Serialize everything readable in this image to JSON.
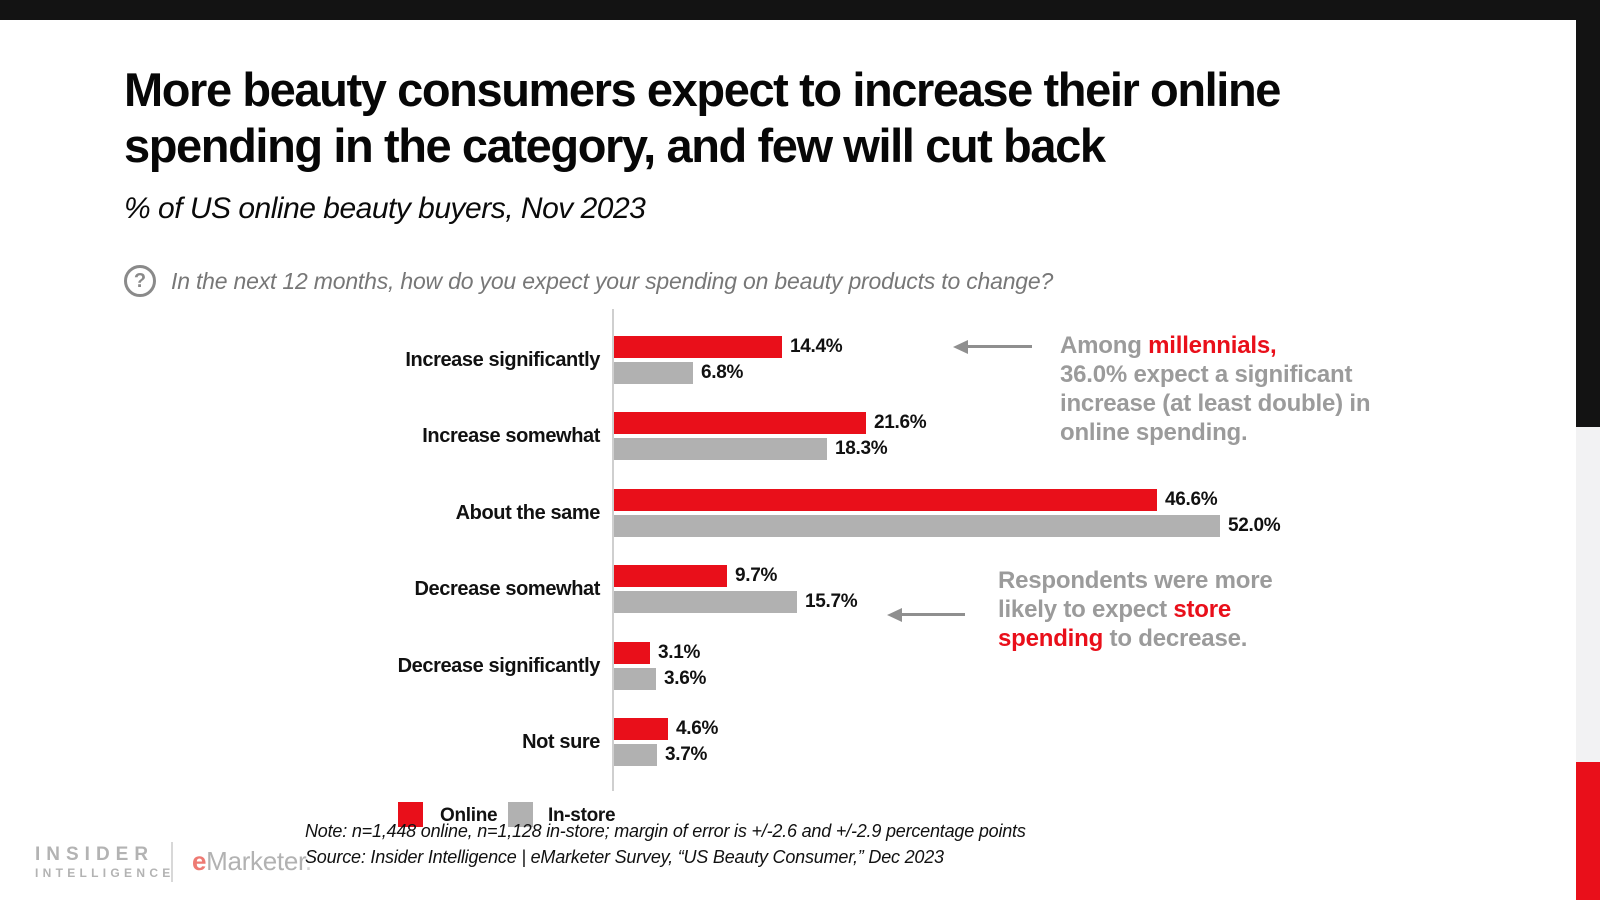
{
  "page": {
    "top_bar_color": "#131313",
    "side_strip_colors": {
      "black": "#131313",
      "gray": "#f2f2f3",
      "red": "#e90f1a"
    }
  },
  "header": {
    "title_line1": "More beauty consumers expect to increase their online",
    "title_line2": "spending in the category, and few will cut back",
    "subtitle": "% of US online beauty buyers, Nov 2023",
    "question_icon": "?",
    "question": "In the next 12 months, how do you expect your spending on beauty products to change?"
  },
  "chart_data": {
    "type": "bar",
    "orientation": "horizontal",
    "unit": "%",
    "title": "% of US online beauty buyers, Nov 2023",
    "categories": [
      "Increase significantly",
      "Increase somewhat",
      "About the same",
      "Decrease somewhat",
      "Decrease significantly",
      "Not sure"
    ],
    "series": [
      {
        "name": "Online",
        "color": "#e90f1a",
        "values": [
          14.4,
          21.6,
          46.6,
          9.7,
          3.1,
          4.6
        ],
        "labels": [
          "14.4%",
          "21.6%",
          "46.6%",
          "9.7%",
          "3.1%",
          "4.6%"
        ]
      },
      {
        "name": "In-store",
        "color": "#b1b1b1",
        "values": [
          6.8,
          18.3,
          52.0,
          15.7,
          3.6,
          3.7
        ],
        "labels": [
          "6.8%",
          "18.3%",
          "52.0%",
          "15.7%",
          "3.6%",
          "3.7%"
        ]
      }
    ],
    "xlim": [
      0,
      55
    ],
    "grid": false,
    "axis_color": "#cfcfcf",
    "legend_position": "bottom-left"
  },
  "annotations": [
    {
      "name": "millennials-callout",
      "parts": [
        {
          "text": "Among ",
          "color": "#9b9b9b"
        },
        {
          "text": "millennials,",
          "color": "#e90f1a"
        },
        {
          "text": "\n36.0% expect a significant\nincrease (at least double) in\nonline spending.",
          "color": "#9b9b9b"
        }
      ]
    },
    {
      "name": "store-spending-callout",
      "parts": [
        {
          "text": "Respondents were more\nlikely to expect ",
          "color": "#9b9b9b"
        },
        {
          "text": "store\nspending",
          "color": "#e90f1a"
        },
        {
          "text": " to decrease.",
          "color": "#9b9b9b"
        }
      ]
    }
  ],
  "footer": {
    "note": "Note: n=1,448 online, n=1,128 in-store; margin of error is +/-2.6 and +/-2.9 percentage points",
    "source": "Source: Insider Intelligence | eMarketer Survey, “US Beauty Consumer,” Dec 2023",
    "brand": {
      "line1": "INSIDER",
      "line2": "INTELLIGENCE",
      "emarketer_e": "e",
      "emarketer_rest": "Marketer",
      "emarketer_period": "."
    }
  }
}
